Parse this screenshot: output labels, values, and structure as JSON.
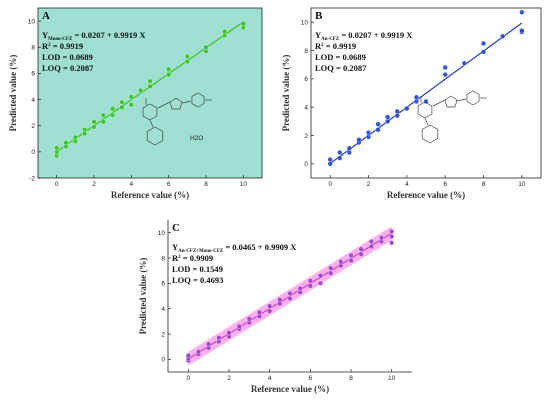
{
  "chart_data": [
    {
      "panel": "A",
      "type": "scatter",
      "xlabel": "Reference value (%)",
      "ylabel": "Predicted value (%)",
      "xlim": [
        -1,
        11
      ],
      "ylim": [
        -2,
        11
      ],
      "xticks": [
        0,
        2,
        4,
        6,
        8,
        10
      ],
      "yticks": [
        -2,
        0,
        2,
        4,
        6,
        8,
        10
      ],
      "plot_bg": "#9fe0d2",
      "marker_color": "#35c51f",
      "line_color": "#35c51f",
      "fit": {
        "intercept": 0.0207,
        "slope": 0.9919
      },
      "stats": {
        "y_main": "Y",
        "y_sub": "Mono-CFZ",
        "equation": " = 0.0207 + 0.9919 X",
        "r2_main": "R",
        "r2_sup": "2",
        "r2_value": " = 0.9919",
        "lod": "LOD = 0.0689",
        "loq": "LOQ = 0.2087"
      },
      "annotation": "H2O",
      "points": [
        {
          "x": 0,
          "y": -0.3
        },
        {
          "x": 0,
          "y": 0
        },
        {
          "x": 0,
          "y": 0.3
        },
        {
          "x": 0.5,
          "y": 0.4
        },
        {
          "x": 0.5,
          "y": 0.7
        },
        {
          "x": 1,
          "y": 0.8
        },
        {
          "x": 1,
          "y": 1.1
        },
        {
          "x": 1.5,
          "y": 1.4
        },
        {
          "x": 1.5,
          "y": 1.7
        },
        {
          "x": 2,
          "y": 1.9
        },
        {
          "x": 2,
          "y": 2.3
        },
        {
          "x": 2.5,
          "y": 2.3
        },
        {
          "x": 2.5,
          "y": 2.8
        },
        {
          "x": 3,
          "y": 2.8
        },
        {
          "x": 3,
          "y": 3.3
        },
        {
          "x": 3.5,
          "y": 3.4
        },
        {
          "x": 3.5,
          "y": 3.8
        },
        {
          "x": 4,
          "y": 3.6
        },
        {
          "x": 4,
          "y": 4.2
        },
        {
          "x": 4.5,
          "y": 4.7
        },
        {
          "x": 5,
          "y": 5.0
        },
        {
          "x": 5,
          "y": 5.4
        },
        {
          "x": 6,
          "y": 5.9
        },
        {
          "x": 6,
          "y": 6.3
        },
        {
          "x": 7,
          "y": 6.9
        },
        {
          "x": 7,
          "y": 7.3
        },
        {
          "x": 8,
          "y": 7.7
        },
        {
          "x": 8,
          "y": 8.0
        },
        {
          "x": 9,
          "y": 8.9
        },
        {
          "x": 9,
          "y": 9.2
        },
        {
          "x": 10,
          "y": 9.5
        },
        {
          "x": 10,
          "y": 9.8
        }
      ]
    },
    {
      "panel": "B",
      "type": "scatter",
      "xlabel": "Reference value (%)",
      "ylabel": "Predicted value (%)",
      "xlim": [
        -1,
        11
      ],
      "ylim": [
        -1,
        11
      ],
      "xticks": [
        0,
        2,
        4,
        6,
        8,
        10
      ],
      "yticks": [
        0,
        2,
        4,
        6,
        8,
        10
      ],
      "plot_bg": "#ffffff",
      "marker_color": "#1f45d8",
      "line_color": "#1f3fbf",
      "fit": {
        "intercept": 0.0207,
        "slope": 0.9919
      },
      "stats": {
        "y_main": "Y",
        "y_sub": "An-CFZ",
        "equation": " = 0.0207 + 0.9919 X",
        "r2_main": "R",
        "r2_sup": "2",
        "r2_value": " = 0.9919",
        "lod": "LOD = 0.0689",
        "loq": "LOQ = 0.2087"
      },
      "points": [
        {
          "x": 0,
          "y": 0
        },
        {
          "x": 0,
          "y": 0.3
        },
        {
          "x": 0.5,
          "y": 0.4
        },
        {
          "x": 0.5,
          "y": 0.8
        },
        {
          "x": 1,
          "y": 0.8
        },
        {
          "x": 1,
          "y": 1.1
        },
        {
          "x": 1.5,
          "y": 1.5
        },
        {
          "x": 1.5,
          "y": 1.7
        },
        {
          "x": 2,
          "y": 1.9
        },
        {
          "x": 2,
          "y": 2.2
        },
        {
          "x": 2.5,
          "y": 2.4
        },
        {
          "x": 2.5,
          "y": 2.8
        },
        {
          "x": 3,
          "y": 3.0
        },
        {
          "x": 3,
          "y": 3.3
        },
        {
          "x": 3.5,
          "y": 3.4
        },
        {
          "x": 3.5,
          "y": 3.7
        },
        {
          "x": 4,
          "y": 3.9
        },
        {
          "x": 4.5,
          "y": 4.4
        },
        {
          "x": 4.5,
          "y": 4.7
        },
        {
          "x": 5,
          "y": 4.4
        },
        {
          "x": 6,
          "y": 6.3
        },
        {
          "x": 6,
          "y": 6.8
        },
        {
          "x": 7,
          "y": 7.1
        },
        {
          "x": 8,
          "y": 7.9
        },
        {
          "x": 8,
          "y": 8.5
        },
        {
          "x": 9,
          "y": 9.0
        },
        {
          "x": 10,
          "y": 9.3
        },
        {
          "x": 10,
          "y": 9.4
        },
        {
          "x": 10,
          "y": 10.7
        }
      ]
    },
    {
      "panel": "C",
      "type": "scatter",
      "xlabel": "Reference value (%)",
      "ylabel": "Predicted value (%)",
      "xlim": [
        -1,
        11
      ],
      "ylim": [
        -1,
        11
      ],
      "xticks": [
        0,
        2,
        4,
        6,
        8,
        10
      ],
      "yticks": [
        0,
        2,
        4,
        6,
        8,
        10
      ],
      "plot_bg": "#ffffff",
      "marker_color": "#9a3fd1",
      "band_color": "#ff6fd8",
      "line_color": "#d63ac6",
      "fit": {
        "intercept": 0.0465,
        "slope": 0.9909
      },
      "stats": {
        "y_main": "Y",
        "y_sub": "An-CFZ+Mono-CFZ",
        "equation": " = 0.0465 + 0.9909 X",
        "r2_main": "R",
        "r2_sup": "2",
        "r2_value": " = 0.9909",
        "lod": "LOD = 0.1549",
        "loq": "LOQ = 0.4693"
      },
      "points": [
        {
          "x": 0,
          "y": -0.1
        },
        {
          "x": 0,
          "y": 0.1
        },
        {
          "x": 0,
          "y": 0.3
        },
        {
          "x": 0.5,
          "y": 0.4
        },
        {
          "x": 0.5,
          "y": 0.6
        },
        {
          "x": 1,
          "y": 0.9
        },
        {
          "x": 1,
          "y": 1.2
        },
        {
          "x": 1.5,
          "y": 1.4
        },
        {
          "x": 1.5,
          "y": 1.7
        },
        {
          "x": 2,
          "y": 1.8
        },
        {
          "x": 2,
          "y": 2.1
        },
        {
          "x": 2.5,
          "y": 2.4
        },
        {
          "x": 2.5,
          "y": 2.6
        },
        {
          "x": 3,
          "y": 2.9
        },
        {
          "x": 3,
          "y": 3.2
        },
        {
          "x": 3.5,
          "y": 3.4
        },
        {
          "x": 3.5,
          "y": 3.7
        },
        {
          "x": 4,
          "y": 3.8
        },
        {
          "x": 4,
          "y": 4.2
        },
        {
          "x": 4.5,
          "y": 4.4
        },
        {
          "x": 4.5,
          "y": 4.7
        },
        {
          "x": 5,
          "y": 4.8
        },
        {
          "x": 5,
          "y": 5.2
        },
        {
          "x": 5.5,
          "y": 5.3
        },
        {
          "x": 5.5,
          "y": 5.6
        },
        {
          "x": 6,
          "y": 5.8
        },
        {
          "x": 6,
          "y": 6.2
        },
        {
          "x": 6.5,
          "y": 6.0
        },
        {
          "x": 6.5,
          "y": 6.6
        },
        {
          "x": 7,
          "y": 6.8
        },
        {
          "x": 7,
          "y": 7.2
        },
        {
          "x": 7.5,
          "y": 7.4
        },
        {
          "x": 7.5,
          "y": 7.7
        },
        {
          "x": 8,
          "y": 7.8
        },
        {
          "x": 8,
          "y": 8.2
        },
        {
          "x": 8.5,
          "y": 8.3
        },
        {
          "x": 8.5,
          "y": 8.7
        },
        {
          "x": 9,
          "y": 8.9
        },
        {
          "x": 9,
          "y": 9.3
        },
        {
          "x": 9.5,
          "y": 9.3
        },
        {
          "x": 9.5,
          "y": 9.6
        },
        {
          "x": 10,
          "y": 9.2
        },
        {
          "x": 10,
          "y": 9.7
        },
        {
          "x": 10,
          "y": 10.1
        }
      ]
    }
  ]
}
